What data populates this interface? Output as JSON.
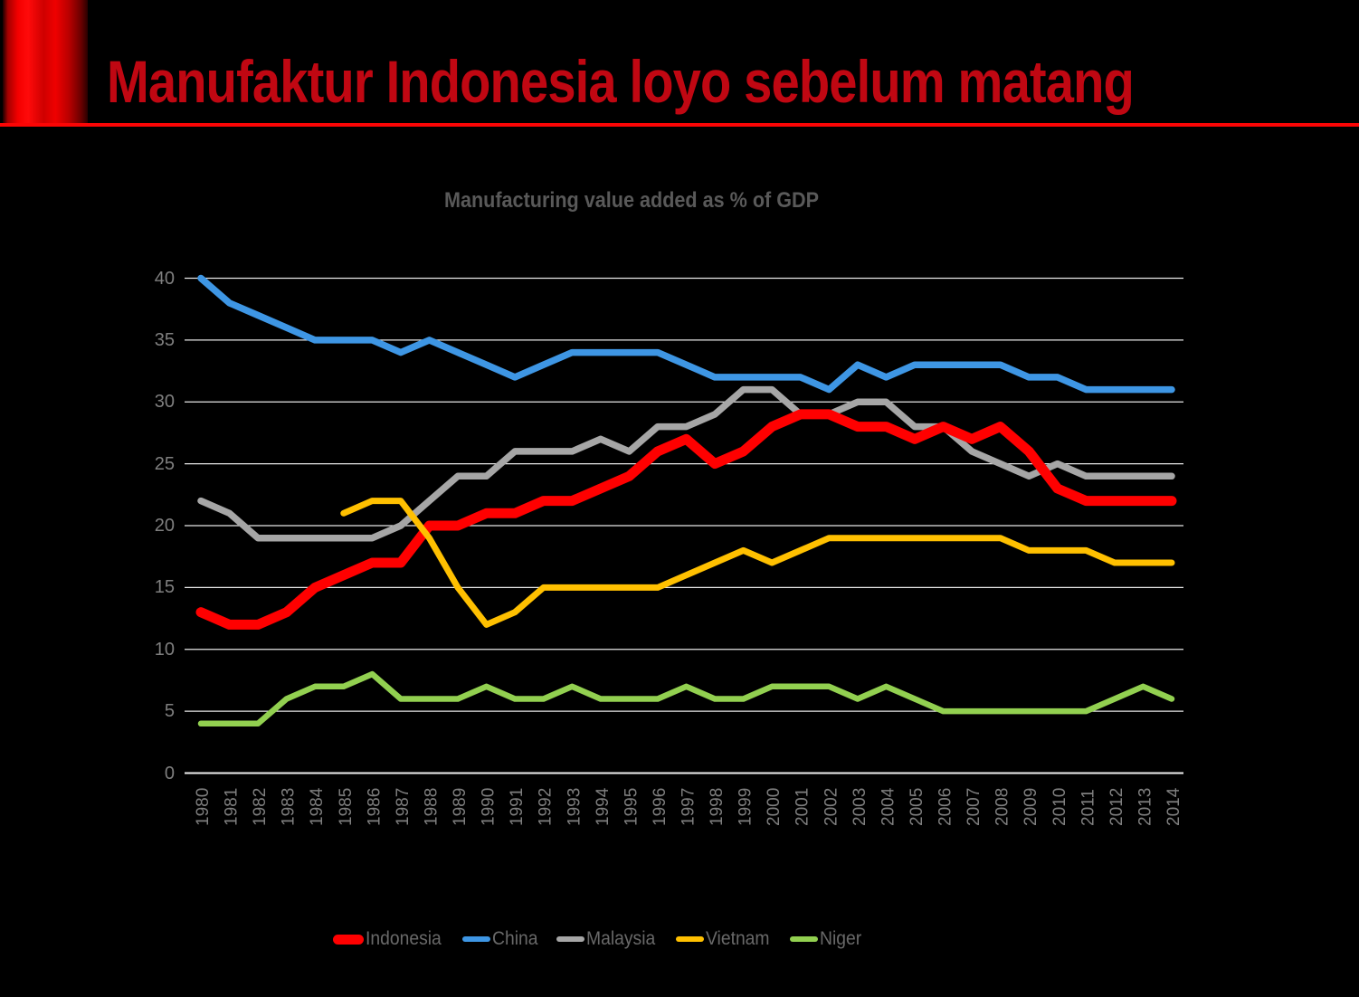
{
  "header": {
    "title": "Manufaktur Indonesia loyo sebelum matang",
    "accent_color": "#C00712",
    "rule_color": "#FB0505"
  },
  "colors": {
    "background": "#000000",
    "gridline": "#E7E7E7",
    "axis_line": "#EFEFEF",
    "axis_label": "#7F7F7F",
    "chart_title": "#595959",
    "legend_text": "#696969"
  },
  "chart_data": {
    "type": "line",
    "title": "Manufacturing  value added as % of GDP",
    "xlabel": "",
    "ylabel": "",
    "ylim": [
      0,
      40
    ],
    "yticks": [
      0,
      5,
      10,
      15,
      20,
      25,
      30,
      35,
      40
    ],
    "grid": true,
    "legend_position": "bottom-left",
    "x": [
      1980,
      1981,
      1982,
      1983,
      1984,
      1985,
      1986,
      1987,
      1988,
      1989,
      1990,
      1991,
      1992,
      1993,
      1994,
      1995,
      1996,
      1997,
      1998,
      1999,
      2000,
      2001,
      2002,
      2003,
      2004,
      2005,
      2006,
      2007,
      2008,
      2009,
      2010,
      2011,
      2012,
      2013,
      2014
    ],
    "series": [
      {
        "name": "Indonesia",
        "color": "#FF0000",
        "line_width": 11,
        "values": [
          13,
          12,
          12,
          13,
          15,
          16,
          17,
          17,
          20,
          20,
          21,
          21,
          22,
          22,
          23,
          24,
          26,
          27,
          25,
          26,
          28,
          29,
          29,
          28,
          28,
          27,
          28,
          27,
          28,
          26,
          23,
          22,
          22,
          22,
          22
        ]
      },
      {
        "name": "China",
        "color": "#3E96E4",
        "line_width": 7.5,
        "values": [
          40,
          38,
          37,
          36,
          35,
          35,
          35,
          34,
          35,
          34,
          33,
          32,
          33,
          34,
          34,
          34,
          34,
          33,
          32,
          32,
          32,
          32,
          31,
          33,
          32,
          33,
          33,
          33,
          33,
          32,
          32,
          31,
          31,
          31,
          31
        ]
      },
      {
        "name": "Malaysia",
        "color": "#A6A6A6",
        "line_width": 7.5,
        "values": [
          22,
          21,
          19,
          19,
          19,
          19,
          19,
          20,
          22,
          24,
          24,
          26,
          26,
          26,
          27,
          26,
          28,
          28,
          29,
          31,
          31,
          29,
          29,
          30,
          30,
          28,
          28,
          26,
          25,
          24,
          25,
          24,
          24,
          24,
          24
        ]
      },
      {
        "name": "Vietnam",
        "color": "#FFC000",
        "line_width": 7,
        "values": [
          null,
          null,
          null,
          null,
          null,
          21,
          22,
          22,
          19,
          15,
          12,
          13,
          15,
          15,
          15,
          15,
          15,
          16,
          17,
          18,
          17,
          18,
          19,
          19,
          19,
          19,
          19,
          19,
          19,
          18,
          18,
          18,
          17,
          17,
          17
        ]
      },
      {
        "name": "Niger",
        "color": "#92D050",
        "line_width": 6.5,
        "values": [
          4,
          4,
          4,
          6,
          7,
          7,
          8,
          6,
          6,
          6,
          7,
          6,
          6,
          7,
          6,
          6,
          6,
          7,
          6,
          6,
          7,
          7,
          7,
          6,
          7,
          6,
          5,
          5,
          5,
          5,
          5,
          5,
          6,
          7,
          6
        ]
      }
    ]
  }
}
